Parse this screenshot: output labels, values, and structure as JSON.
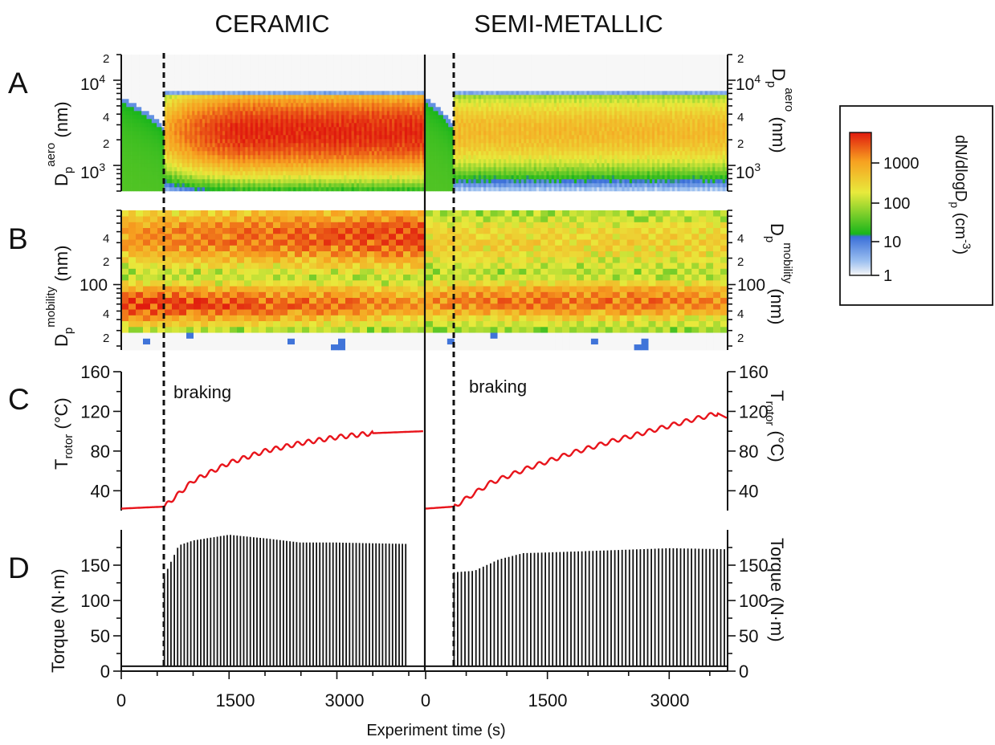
{
  "figure": {
    "column_titles": [
      "CERAMIC",
      "SEMI-METALLIC"
    ],
    "panel_letters": [
      "A",
      "B",
      "C",
      "D"
    ],
    "x_axis_label": "Experiment time (s)",
    "x_ticks": [
      "0",
      "1500",
      "3000"
    ],
    "annotation": "braking"
  },
  "colorbar": {
    "label_main": "dN/dlogD",
    "label_sub": "p",
    "label_unit": " (cm",
    "label_exp": "-3",
    "label_close": ")",
    "ticks": [
      "1000",
      "100",
      "10",
      "1"
    ],
    "colors": [
      "#f7f7f7",
      "#3a6fd8",
      "#19b51b",
      "#f0e838",
      "#f7a020",
      "#e01a0e"
    ]
  },
  "panels": {
    "A": {
      "ylabel_main": "D",
      "ylabel_sub": "p",
      "ylabel_sup": "aero",
      "ylabel_unit": " (nm)",
      "tick_1e3": "10",
      "tick_1e3_exp": "3",
      "tick_1e4": "10",
      "tick_1e4_exp": "4",
      "minor_ticks": [
        "2",
        "4",
        "2",
        "4",
        "2"
      ]
    },
    "B": {
      "ylabel_main": "D",
      "ylabel_sub": "p",
      "ylabel_sup": "mobility",
      "ylabel_unit": " (nm)",
      "ticks": [
        "4",
        "2",
        "100",
        "4",
        "2"
      ]
    },
    "C": {
      "ylabel_main": "T",
      "ylabel_sub": "rotor",
      "ylabel_unit": " (°C)",
      "ticks": [
        "160",
        "120",
        "80",
        "40"
      ]
    },
    "D": {
      "ylabel": "Torque (N·m)",
      "ticks": [
        "150",
        "100",
        "50",
        "0"
      ]
    }
  },
  "chart_data": [
    {
      "type": "heatmap",
      "panel": "A",
      "ylabel": "Dp aero (nm)",
      "colorscale": "dN/dlogDp (cm-3), log 1 to 1000+",
      "yscale": "log",
      "ylim": [
        500,
        20000
      ],
      "series": [
        {
          "name": "CERAMIC",
          "braking_start_s": 600,
          "x_end_s": 4200,
          "upper_edge_nm": 7000,
          "peak_diameter_nm": 2500,
          "peak_level": 3000
        },
        {
          "name": "SEMI-METALLIC",
          "braking_start_s": 350,
          "x_end_s": 4200,
          "upper_edge_nm": 6500,
          "peak_diameter_nm": 2500,
          "peak_level": 400
        }
      ]
    },
    {
      "type": "heatmap",
      "panel": "B",
      "ylabel": "Dp mobility (nm)",
      "yscale": "log",
      "ylim": [
        18,
        700
      ],
      "series": [
        {
          "name": "CERAMIC",
          "mode_small_nm": 60,
          "mode_large_nm": 350,
          "peak_level": 3000
        },
        {
          "name": "SEMI-METALLIC",
          "mode_small_nm": 65,
          "mode_large_nm": 300,
          "peak_level": 1500
        }
      ]
    },
    {
      "type": "line",
      "panel": "C",
      "ylabel": "Trotor (°C)",
      "xlabel": "Experiment time (s)",
      "ylim": [
        20,
        160
      ],
      "series": [
        {
          "name": "CERAMIC",
          "x": [
            0,
            600,
            1000,
            1500,
            2000,
            2500,
            3000,
            3500,
            4200
          ],
          "y": [
            22,
            24,
            50,
            68,
            80,
            88,
            94,
            98,
            100
          ]
        },
        {
          "name": "SEMI-METALLIC",
          "x": [
            0,
            350,
            800,
            1300,
            1800,
            2300,
            2800,
            3300,
            3600,
            3950
          ],
          "y": [
            22,
            24,
            48,
            64,
            78,
            90,
            101,
            112,
            118,
            103
          ]
        }
      ]
    },
    {
      "type": "bar",
      "panel": "D",
      "ylabel": "Torque (N·m)",
      "xlabel": "Experiment time (s)",
      "ylim": [
        0,
        200
      ],
      "series": [
        {
          "name": "CERAMIC",
          "baseline": 7,
          "braking_start_s": 600,
          "x_end_s": 4000,
          "x": [
            600,
            800,
            1000,
            1500,
            2000,
            2500,
            3000,
            3500,
            4000
          ],
          "y": [
            135,
            178,
            185,
            193,
            188,
            182,
            182,
            181,
            180
          ]
        },
        {
          "name": "SEMI-METALLIC",
          "baseline": 7,
          "braking_start_s": 350,
          "x_end_s": 3950,
          "x": [
            350,
            600,
            900,
            1200,
            1500,
            2000,
            2500,
            3000,
            3500,
            3950
          ],
          "y": [
            140,
            142,
            158,
            167,
            168,
            170,
            172,
            174,
            173,
            172
          ]
        }
      ]
    }
  ]
}
